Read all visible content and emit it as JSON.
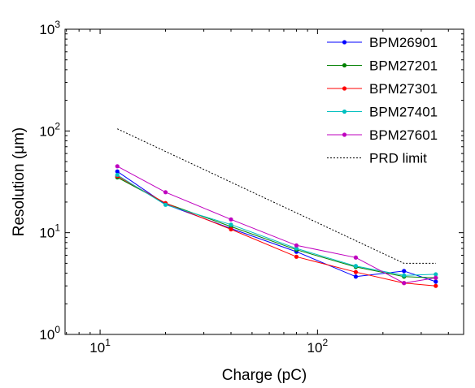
{
  "chart_data": {
    "type": "line",
    "xlabel": "Charge  (pC)",
    "ylabel": "Resolution  (μm)",
    "xscale": "log",
    "yscale": "log",
    "xlim": [
      6.9,
      470
    ],
    "ylim": [
      1,
      1000
    ],
    "x_ticks": [
      {
        "value": 10,
        "base": "10",
        "exp": "1"
      },
      {
        "value": 100,
        "base": "10",
        "exp": "2"
      }
    ],
    "y_ticks": [
      {
        "value": 1,
        "base": "10",
        "exp": "0"
      },
      {
        "value": 10,
        "base": "10",
        "exp": "1"
      },
      {
        "value": 100,
        "base": "10",
        "exp": "2"
      },
      {
        "value": 1000,
        "base": "10",
        "exp": "3"
      }
    ],
    "grid": false,
    "legend_position": "top-right",
    "series": [
      {
        "name": "BPM26901",
        "color": "#0000ff",
        "style": "solid",
        "marker": "dot",
        "x": [
          12,
          20,
          40,
          80,
          150,
          250,
          350
        ],
        "y": [
          40,
          19,
          11,
          6.5,
          3.7,
          4.2,
          3.3
        ]
      },
      {
        "name": "BPM27201",
        "color": "#008000",
        "style": "solid",
        "marker": "dot",
        "x": [
          12,
          20,
          40,
          80,
          150,
          250,
          350
        ],
        "y": [
          35,
          19.5,
          11.5,
          6.8,
          4.6,
          3.7,
          3.6
        ]
      },
      {
        "name": "BPM27301",
        "color": "#ff0000",
        "style": "solid",
        "marker": "dot",
        "x": [
          12,
          20,
          40,
          80,
          150,
          250,
          350
        ],
        "y": [
          36,
          19.5,
          10.8,
          5.8,
          4.1,
          3.2,
          3.0
        ]
      },
      {
        "name": "BPM27401",
        "color": "#00bfbf",
        "style": "solid",
        "marker": "dot",
        "x": [
          12,
          20,
          40,
          80,
          150,
          250,
          350
        ],
        "y": [
          37,
          18.8,
          12,
          7.0,
          4.7,
          3.8,
          3.9
        ]
      },
      {
        "name": "BPM27601",
        "color": "#bf00bf",
        "style": "solid",
        "marker": "dot",
        "x": [
          12,
          20,
          40,
          80,
          150,
          250,
          350
        ],
        "y": [
          45,
          25,
          13.5,
          7.5,
          5.7,
          3.2,
          3.6
        ]
      },
      {
        "name": "PRD limit",
        "color": "#000000",
        "style": "dotted",
        "marker": "none",
        "x": [
          12,
          250,
          350
        ],
        "y": [
          105,
          5.0,
          5.0
        ]
      }
    ]
  }
}
